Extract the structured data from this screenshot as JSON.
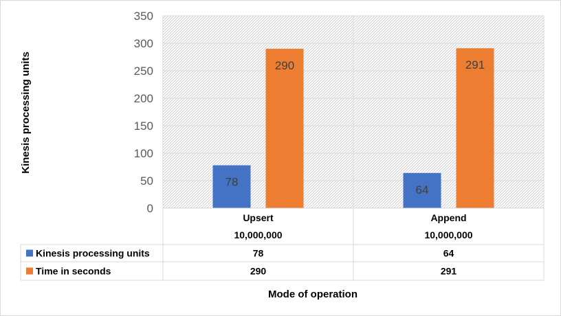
{
  "chart_data": {
    "type": "bar",
    "categories": [
      {
        "name": "Upsert",
        "sub": "10,000,000"
      },
      {
        "name": "Append",
        "sub": "10,000,000"
      }
    ],
    "series": [
      {
        "name": "Kinesis processing units",
        "values": [
          78,
          64
        ],
        "color": "#4472c4"
      },
      {
        "name": "Time in seconds",
        "values": [
          290,
          291
        ],
        "color": "#ed7d31"
      }
    ],
    "xlabel": "Mode of operation",
    "ylabel": "Kinesis processing units",
    "ylim": [
      0,
      350
    ],
    "yticks": [
      0,
      50,
      100,
      150,
      200,
      250,
      300,
      350
    ],
    "grid": true,
    "data_table": true
  }
}
